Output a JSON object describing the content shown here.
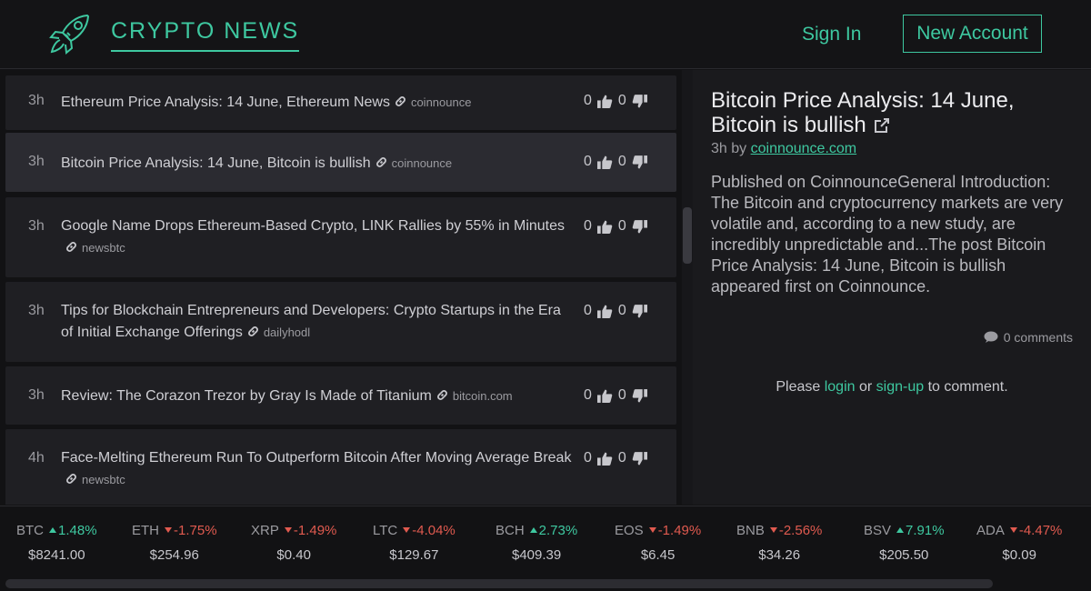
{
  "header": {
    "brand": "CRYPTO NEWS",
    "sign_in": "Sign In",
    "new_account": "New Account",
    "logo_icon": "rocket-icon",
    "accent": "#3ec8a0"
  },
  "news": [
    {
      "age": "3h",
      "title": "Ethereum Price Analysis: 14 June, Ethereum News",
      "source": "coinnounce",
      "up": "0",
      "down": "0"
    },
    {
      "age": "3h",
      "title": "Bitcoin Price Analysis: 14 June, Bitcoin is bullish",
      "source": "coinnounce",
      "up": "0",
      "down": "0"
    },
    {
      "age": "3h",
      "title": "Google Name Drops Ethereum-Based Crypto, LINK Rallies by 55% in Minutes",
      "source": "newsbtc",
      "up": "0",
      "down": "0"
    },
    {
      "age": "3h",
      "title": "Tips for Blockchain Entrepreneurs and Developers: Crypto Startups in the Era of Initial Exchange Offerings",
      "source": "dailyhodl",
      "up": "0",
      "down": "0"
    },
    {
      "age": "3h",
      "title": "Review: The Corazon Trezor by Gray Is Made of Titanium",
      "source": "bitcoin.com",
      "up": "0",
      "down": "0"
    },
    {
      "age": "4h",
      "title": "Face-Melting Ethereum Run To Outperform Bitcoin After Moving Average Break",
      "source": "newsbtc",
      "up": "0",
      "down": "0"
    }
  ],
  "detail": {
    "title": "Bitcoin Price Analysis: 14 June, Bitcoin is bullish",
    "age": "3h",
    "by": "by",
    "source_link": "coinnounce.com",
    "body": "Published on CoinnounceGeneral Introduction: The Bitcoin and cryptocurrency markets are very volatile and, according to a new study, are incredibly unpredictable and...The post Bitcoin Price Analysis: 14 June, Bitcoin is bullish appeared first on Coinnounce.",
    "comments": "0 comments",
    "login_prefix": "Please",
    "login": "login",
    "or": "or",
    "signup": "sign-up",
    "login_suffix": "to comment."
  },
  "ticker": [
    {
      "symbol": "BTC",
      "direction": "up",
      "change": "1.48%",
      "price": "$8241.00"
    },
    {
      "symbol": "ETH",
      "direction": "down",
      "change": "-1.75%",
      "price": "$254.96"
    },
    {
      "symbol": "XRP",
      "direction": "down",
      "change": "-1.49%",
      "price": "$0.40"
    },
    {
      "symbol": "LTC",
      "direction": "down",
      "change": "-4.04%",
      "price": "$129.67"
    },
    {
      "symbol": "BCH",
      "direction": "up",
      "change": "2.73%",
      "price": "$409.39"
    },
    {
      "symbol": "EOS",
      "direction": "down",
      "change": "-1.49%",
      "price": "$6.45"
    },
    {
      "symbol": "BNB",
      "direction": "down",
      "change": "-2.56%",
      "price": "$34.26"
    },
    {
      "symbol": "BSV",
      "direction": "up",
      "change": "7.91%",
      "price": "$205.50"
    },
    {
      "symbol": "ADA",
      "direction": "down",
      "change": "-4.47%",
      "price": "$0.09"
    }
  ]
}
